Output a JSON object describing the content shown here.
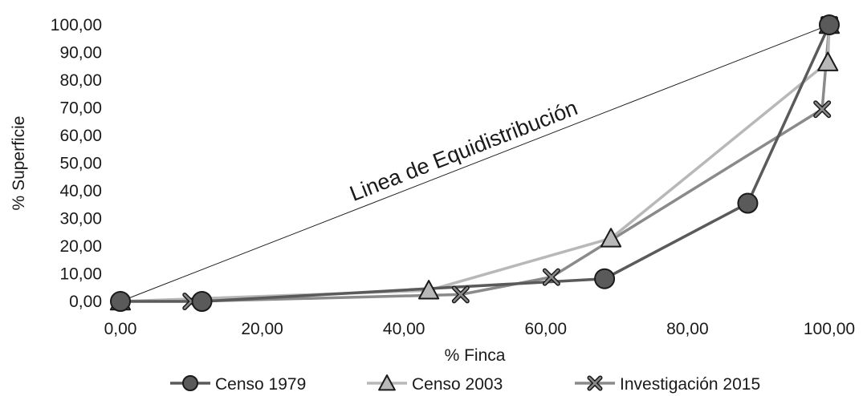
{
  "chart_data": {
    "type": "line",
    "xlabel": "% Finca",
    "ylabel": "% Superficie",
    "xlim": [
      0,
      100
    ],
    "ylim": [
      0,
      100
    ],
    "xticks": [
      "0,00",
      "20,00",
      "40,00",
      "60,00",
      "80,00",
      "100,00"
    ],
    "yticks": [
      "0,00",
      "10,00",
      "20,00",
      "30,00",
      "40,00",
      "50,00",
      "60,00",
      "70,00",
      "80,00",
      "90,00",
      "100,00"
    ],
    "grid": false,
    "legend_position": "bottom",
    "annotation": "Linea de Equidistribución",
    "equidistribution": {
      "x": [
        0,
        100
      ],
      "y": [
        0,
        100
      ],
      "color": "#1a1a1a"
    },
    "series": [
      {
        "name": "Censo 1979",
        "marker": "circle",
        "color": "#5a5a5a",
        "x": [
          0,
          11.5,
          68.3,
          88.5,
          100
        ],
        "y": [
          0,
          0,
          8.2,
          35.5,
          100
        ]
      },
      {
        "name": "Censo 2003",
        "marker": "triangle",
        "color": "#b8b8b8",
        "x": [
          0,
          43.5,
          69.2,
          99.8,
          100
        ],
        "y": [
          0,
          4.0,
          22.8,
          86.5,
          100
        ]
      },
      {
        "name": "Investigación 2015",
        "marker": "x",
        "color": "#8a8a8a",
        "x": [
          10,
          48,
          60.8,
          99,
          100
        ],
        "y": [
          0,
          2.5,
          8.8,
          69.5,
          100
        ]
      }
    ]
  }
}
